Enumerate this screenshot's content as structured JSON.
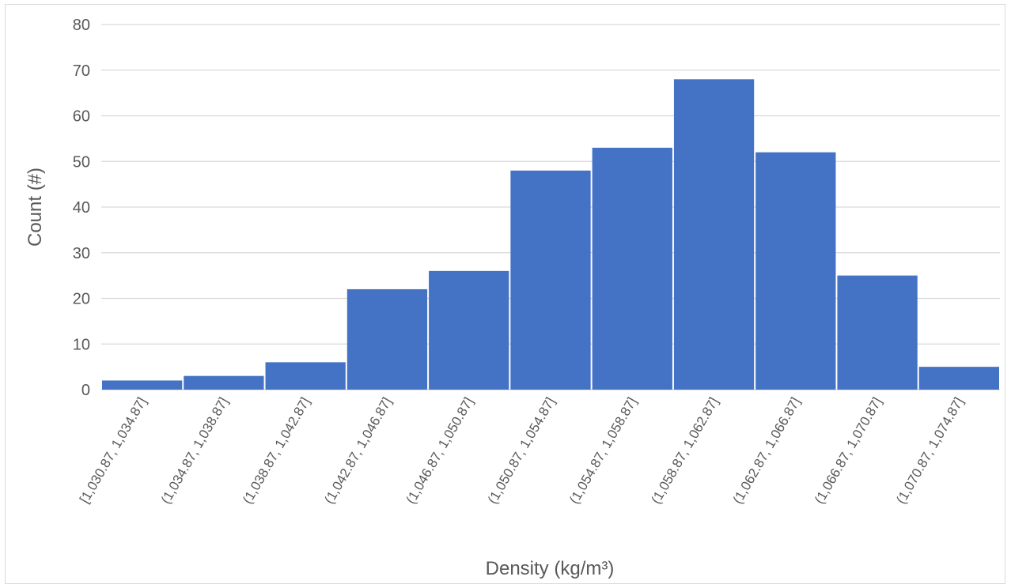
{
  "chart_data": {
    "type": "bar",
    "title": "",
    "xlabel": "Density (kg/m³)",
    "ylabel": "Count (#)",
    "ylim": [
      0,
      80
    ],
    "yticks": [
      "0",
      "10",
      "20",
      "30",
      "40",
      "50",
      "60",
      "70",
      "80"
    ],
    "grid": true,
    "categories": [
      "[1,030.87, 1,034.87]",
      "(1,034.87, 1,038.87]",
      "(1,038.87, 1,042.87]",
      "(1,042.87, 1,046.87]",
      "(1,046.87, 1,050.87]",
      "(1,050.87, 1,054.87]",
      "(1,054.87, 1,058.87]",
      "(1,058.87, 1,062.87]",
      "(1,062.87, 1,066.87]",
      "(1,066.87, 1,070.87]",
      "(1,070.87, 1,074.87]"
    ],
    "values": [
      2,
      3,
      6,
      22,
      26,
      48,
      53,
      68,
      52,
      25,
      5
    ],
    "bar_color": "#4472c4",
    "gridline_color": "#d9d9d9",
    "text_color": "#595959"
  }
}
